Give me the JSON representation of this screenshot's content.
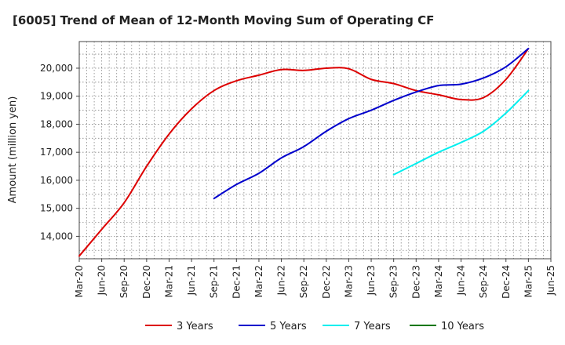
{
  "chart_data": {
    "type": "line",
    "title": "[6005]  Trend of Mean of 12-Month Moving Sum of Operating CF",
    "xlabel": "",
    "ylabel": "Amount (million yen)",
    "ylim": [
      13200,
      20950
    ],
    "yticks": [
      14000,
      15000,
      16000,
      17000,
      18000,
      19000,
      20000
    ],
    "ytick_labels": [
      "14,000",
      "15,000",
      "16,000",
      "17,000",
      "18,000",
      "19,000",
      "20,000"
    ],
    "x_range_months": [
      0,
      63
    ],
    "xtick_labels": [
      "Mar-20",
      "Jun-20",
      "Sep-20",
      "Dec-20",
      "Mar-21",
      "Jun-21",
      "Sep-21",
      "Dec-21",
      "Mar-22",
      "Jun-22",
      "Sep-22",
      "Dec-22",
      "Mar-23",
      "Jun-23",
      "Sep-23",
      "Dec-23",
      "Mar-24",
      "Jun-24",
      "Sep-24",
      "Dec-24",
      "Mar-25",
      "Jun-25"
    ],
    "grid": true,
    "legend_position": "bottom",
    "series": [
      {
        "name": "3 Years",
        "color": "#dd0000",
        "x": [
          0,
          3,
          6,
          9,
          12,
          15,
          18,
          21,
          24,
          27,
          30,
          33,
          36,
          39,
          42,
          45,
          48,
          51,
          54,
          57,
          60
        ],
        "values": [
          13300,
          14250,
          15200,
          16500,
          17650,
          18550,
          19200,
          19550,
          19750,
          19950,
          19920,
          20000,
          19980,
          19600,
          19450,
          19200,
          19050,
          18880,
          18950,
          19600,
          20700
        ]
      },
      {
        "name": "5 Years",
        "color": "#0000cc",
        "x": [
          18,
          21,
          24,
          27,
          30,
          33,
          36,
          39,
          42,
          45,
          48,
          51,
          54,
          57,
          60
        ],
        "values": [
          15350,
          15850,
          16250,
          16800,
          17200,
          17750,
          18200,
          18500,
          18850,
          19150,
          19380,
          19430,
          19650,
          20050,
          20700
        ]
      },
      {
        "name": "7 Years",
        "color": "#00eeee",
        "x": [
          42,
          45,
          48,
          51,
          54,
          57,
          60
        ],
        "values": [
          16200,
          16600,
          17000,
          17350,
          17750,
          18400,
          19200
        ]
      },
      {
        "name": "10 Years",
        "color": "#007700",
        "x": [],
        "values": []
      }
    ]
  }
}
